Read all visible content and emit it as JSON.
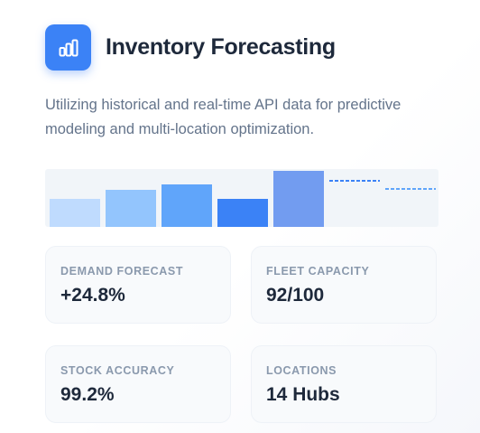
{
  "header": {
    "icon": "bar-chart-icon",
    "title": "Inventory Forecasting",
    "accent": "#3b82f6"
  },
  "description": "Utilizing historical and real-time API data for predictive modeling and multi-location optimization.",
  "chart_data": {
    "type": "bar",
    "values": [
      31,
      41,
      47,
      31,
      62
    ],
    "colors": [
      "#bfdbfe",
      "#93c5fd",
      "#60a5fa",
      "#3b82f6",
      "#729cf0"
    ],
    "forecast_lines": 2,
    "title": "",
    "xlabel": "",
    "ylabel": "",
    "ylim": [
      0,
      62
    ]
  },
  "metrics": [
    {
      "label": "DEMAND FORECAST",
      "value": "+24.8%"
    },
    {
      "label": "FLEET CAPACITY",
      "value": "92/100"
    },
    {
      "label": "STOCK ACCURACY",
      "value": "99.2%"
    },
    {
      "label": "LOCATIONS",
      "value": "14 Hubs"
    }
  ]
}
